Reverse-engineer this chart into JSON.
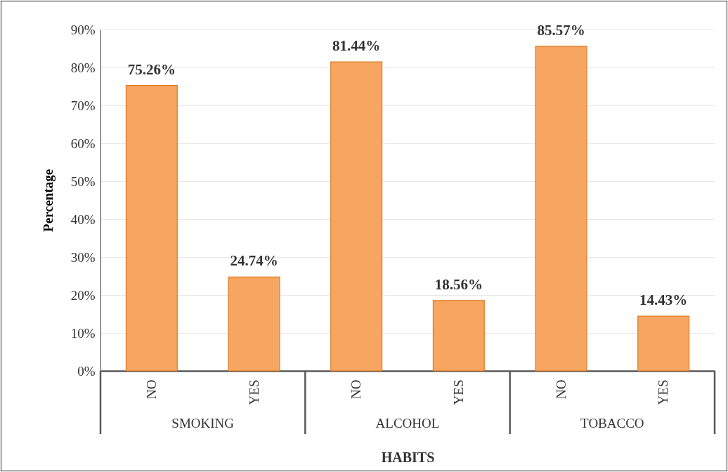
{
  "chart_data": {
    "type": "bar",
    "xlabel": "HABITS",
    "ylabel": "Percentage",
    "categories": [
      "NO",
      "YES",
      "NO",
      "YES",
      "NO",
      "YES"
    ],
    "values": [
      75.26,
      24.74,
      81.44,
      18.56,
      85.57,
      14.43
    ],
    "value_labels": [
      "75.26%",
      "24.74%",
      "81.44%",
      "18.56%",
      "85.57%",
      "14.43%"
    ],
    "color": "#f6a661",
    "ylim": [
      0,
      90
    ],
    "yticks": [
      {
        "value": 0,
        "label": "0%"
      },
      {
        "value": 10,
        "label": "10%"
      },
      {
        "value": 20,
        "label": "20%"
      },
      {
        "value": 30,
        "label": "30%"
      },
      {
        "value": 40,
        "label": "40%"
      },
      {
        "value": 50,
        "label": "50%"
      },
      {
        "value": 60,
        "label": "60%"
      },
      {
        "value": 70,
        "label": "70%"
      },
      {
        "value": 80,
        "label": "80%"
      },
      {
        "value": 90,
        "label": "90%"
      }
    ],
    "grid": "y",
    "annotations": [
      "SMOKING",
      "ALCOHOL",
      "TOBACCO"
    ]
  }
}
